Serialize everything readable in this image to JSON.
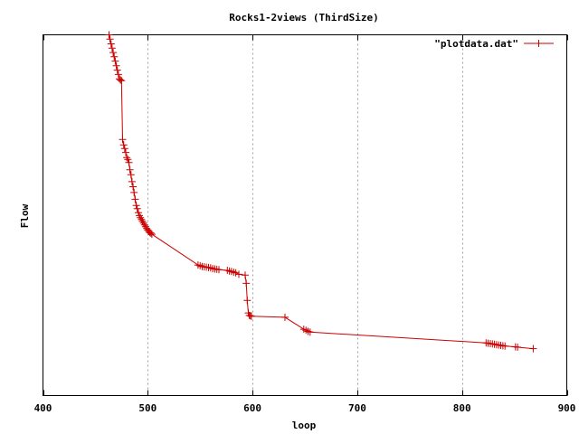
{
  "chart_data": {
    "type": "line",
    "title": "Rocks1-2views (ThirdSize)",
    "xlabel": "loop",
    "ylabel": "Flow",
    "xlim": [
      400,
      900
    ],
    "ylim": [
      0,
      100
    ],
    "xticks": [
      400,
      500,
      600,
      700,
      800,
      900
    ],
    "grid": "vertical-dashed",
    "legend_position": "top-right",
    "series": [
      {
        "name": "\"plotdata.dat\"",
        "color": "#cc0000",
        "x": [
          463,
          464,
          465,
          466,
          467,
          468,
          469,
          470,
          471,
          472,
          473,
          474,
          475,
          476,
          477,
          478,
          479,
          480,
          481,
          482,
          483,
          484,
          485,
          486,
          487,
          488,
          489,
          490,
          491,
          492,
          493,
          494,
          495,
          496,
          497,
          498,
          499,
          500,
          501,
          502,
          503,
          504,
          548,
          550,
          552,
          554,
          556,
          558,
          560,
          562,
          564,
          566,
          568,
          576,
          578,
          580,
          582,
          584,
          587,
          593,
          594,
          595,
          596,
          597,
          598,
          599,
          631,
          649,
          651,
          653,
          655,
          823,
          825,
          827,
          829,
          831,
          833,
          835,
          837,
          839,
          841,
          851,
          853,
          868
        ],
        "y": [
          100,
          98.8,
          97.5,
          96.3,
          95.1,
          93.9,
          92.7,
          91.4,
          90.2,
          89.0,
          87.8,
          87.5,
          87.3,
          71.0,
          69.5,
          68.5,
          67.4,
          66.0,
          65.5,
          64.6,
          62.6,
          61.2,
          59.3,
          57.9,
          56.3,
          54.4,
          52.7,
          51.8,
          50.7,
          49.9,
          49.3,
          48.8,
          48.3,
          47.8,
          47.3,
          46.8,
          46.3,
          45.9,
          45.5,
          45.2,
          45.0,
          44.7,
          36.2,
          36.0,
          35.8,
          35.7,
          35.6,
          35.5,
          35.4,
          35.2,
          35.1,
          35.0,
          34.9,
          34.7,
          34.5,
          34.4,
          34.2,
          34.0,
          33.6,
          33.4,
          31.1,
          26.4,
          22.9,
          22.2,
          22.1,
          22.0,
          21.7,
          18.4,
          18.1,
          17.8,
          17.6,
          14.6,
          14.5,
          14.4,
          14.3,
          14.2,
          14.1,
          14.0,
          13.9,
          13.8,
          13.7,
          13.5,
          13.4,
          13.0
        ]
      }
    ]
  }
}
